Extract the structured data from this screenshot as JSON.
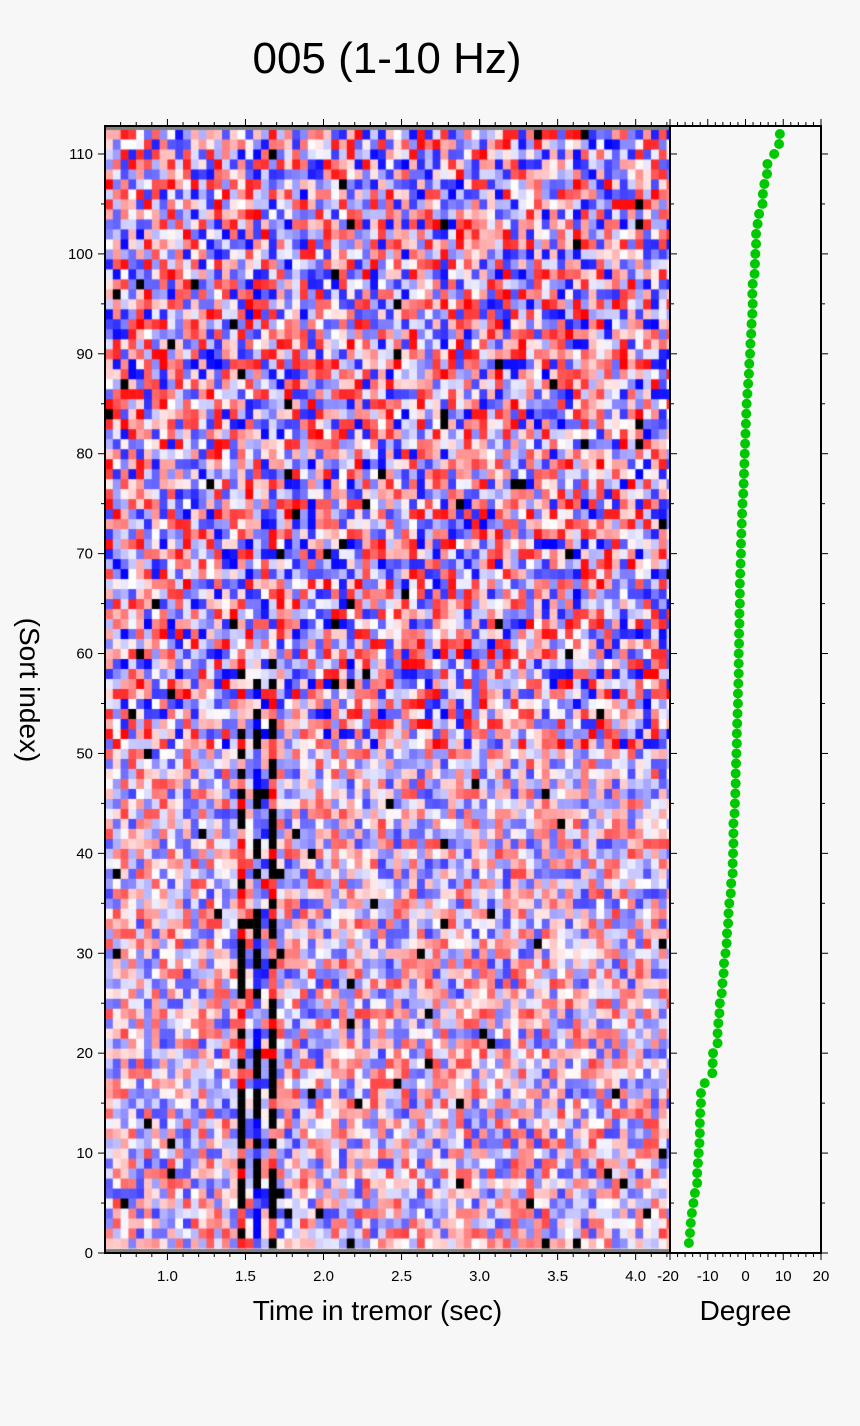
{
  "title": "005 (1-10 Hz)",
  "colors": {
    "background": "#f7f7f7",
    "positive": "#ff0000",
    "negative": "#0000ff",
    "saturated": "#000000",
    "dots": "#00c800",
    "frame": "#000000",
    "edge_strip": "#808080"
  },
  "chart_data": [
    {
      "type": "heatmap",
      "title": "005 (1-10 Hz)",
      "xlabel": "Time in tremor (sec)",
      "ylabel": "(Sort index)",
      "xlim": [
        0.6,
        4.22
      ],
      "ylim": [
        0,
        112.8
      ],
      "xticks": [
        1.0,
        1.5,
        2.0,
        2.5,
        3.0,
        3.5,
        4.0
      ],
      "xtick_labels": [
        "1.0",
        "1.5",
        "2.0",
        "2.5",
        "3.0",
        "3.5",
        "4.0"
      ],
      "yticks": [
        0,
        10,
        20,
        30,
        40,
        50,
        60,
        70,
        80,
        90,
        100,
        110
      ],
      "ytick_labels": [
        "0",
        "10",
        "20",
        "30",
        "40",
        "50",
        "60",
        "70",
        "80",
        "90",
        "100",
        "110"
      ],
      "colormap": "blue-white-red (polarity), black = clipped",
      "rows": 112,
      "coherent_features": [
        {
          "time": 1.48,
          "polarity": "positive",
          "rows": [
            1,
            52
          ]
        },
        {
          "time": 1.58,
          "polarity": "negative",
          "rows": [
            1,
            60
          ]
        },
        {
          "time": 1.68,
          "polarity": "positive",
          "rows": [
            1,
            55
          ]
        }
      ],
      "grid": false
    },
    {
      "type": "scatter",
      "xlabel": "Degree",
      "ylabel": "",
      "xlim": [
        -20,
        20
      ],
      "ylim": [
        0,
        112.8
      ],
      "xticks": [
        -20,
        -10,
        0,
        10,
        20
      ],
      "xtick_labels": [
        "-20",
        "-10",
        "0",
        "10",
        "20"
      ],
      "series": [
        {
          "name": "degree",
          "color": "#00c800",
          "y": [
            1,
            2,
            3,
            4,
            5,
            6,
            7,
            8,
            9,
            10,
            11,
            12,
            13,
            14,
            15,
            16,
            17,
            18,
            19,
            20,
            21,
            22,
            23,
            24,
            25,
            26,
            27,
            28,
            29,
            30,
            31,
            32,
            33,
            34,
            35,
            36,
            37,
            38,
            39,
            40,
            41,
            42,
            43,
            44,
            45,
            46,
            47,
            48,
            49,
            50,
            51,
            52,
            53,
            54,
            55,
            56,
            57,
            58,
            59,
            60,
            61,
            62,
            63,
            64,
            65,
            66,
            67,
            68,
            69,
            70,
            71,
            72,
            73,
            74,
            75,
            76,
            77,
            78,
            79,
            80,
            81,
            82,
            83,
            84,
            85,
            86,
            87,
            88,
            89,
            90,
            91,
            92,
            93,
            94,
            95,
            96,
            97,
            98,
            99,
            100,
            101,
            102,
            103,
            104,
            105,
            106,
            107,
            108,
            109,
            110,
            111,
            112
          ],
          "x": [
            -15.0,
            -14.7,
            -14.5,
            -14.2,
            -13.8,
            -13.4,
            -12.8,
            -12.8,
            -12.6,
            -12.4,
            -12.2,
            -12.1,
            -12.1,
            -12.0,
            -11.8,
            -11.8,
            -10.8,
            -8.8,
            -8.7,
            -8.6,
            -7.4,
            -7.4,
            -7.2,
            -6.9,
            -6.8,
            -6.3,
            -6.1,
            -5.8,
            -5.7,
            -5.3,
            -5.0,
            -4.9,
            -4.6,
            -4.5,
            -4.3,
            -3.9,
            -3.8,
            -3.4,
            -3.4,
            -3.3,
            -3.2,
            -3.2,
            -3.2,
            -2.9,
            -2.8,
            -2.7,
            -2.6,
            -2.6,
            -2.5,
            -2.4,
            -2.3,
            -2.3,
            -2.2,
            -2.1,
            -2.0,
            -2.0,
            -1.9,
            -1.8,
            -1.8,
            -1.8,
            -1.7,
            -1.7,
            -1.6,
            -1.6,
            -1.5,
            -1.5,
            -1.5,
            -1.4,
            -1.3,
            -1.2,
            -1.2,
            -1.1,
            -1.0,
            -0.9,
            -0.8,
            -0.6,
            -0.5,
            -0.4,
            -0.3,
            -0.2,
            -0.1,
            0.0,
            0.1,
            0.2,
            0.3,
            0.5,
            0.7,
            0.9,
            1.0,
            1.2,
            1.3,
            1.5,
            1.6,
            1.8,
            1.9,
            1.8,
            1.9,
            2.4,
            2.5,
            2.6,
            2.8,
            2.8,
            3.2,
            3.6,
            4.5,
            4.6,
            5.0,
            5.7,
            5.8,
            7.6,
            8.9,
            9.1
          ]
        }
      ],
      "grid": false
    }
  ],
  "axes": {
    "x_main_label": "Time in tremor (sec)",
    "x_degree_label": "Degree",
    "y_label": "(Sort index)"
  }
}
